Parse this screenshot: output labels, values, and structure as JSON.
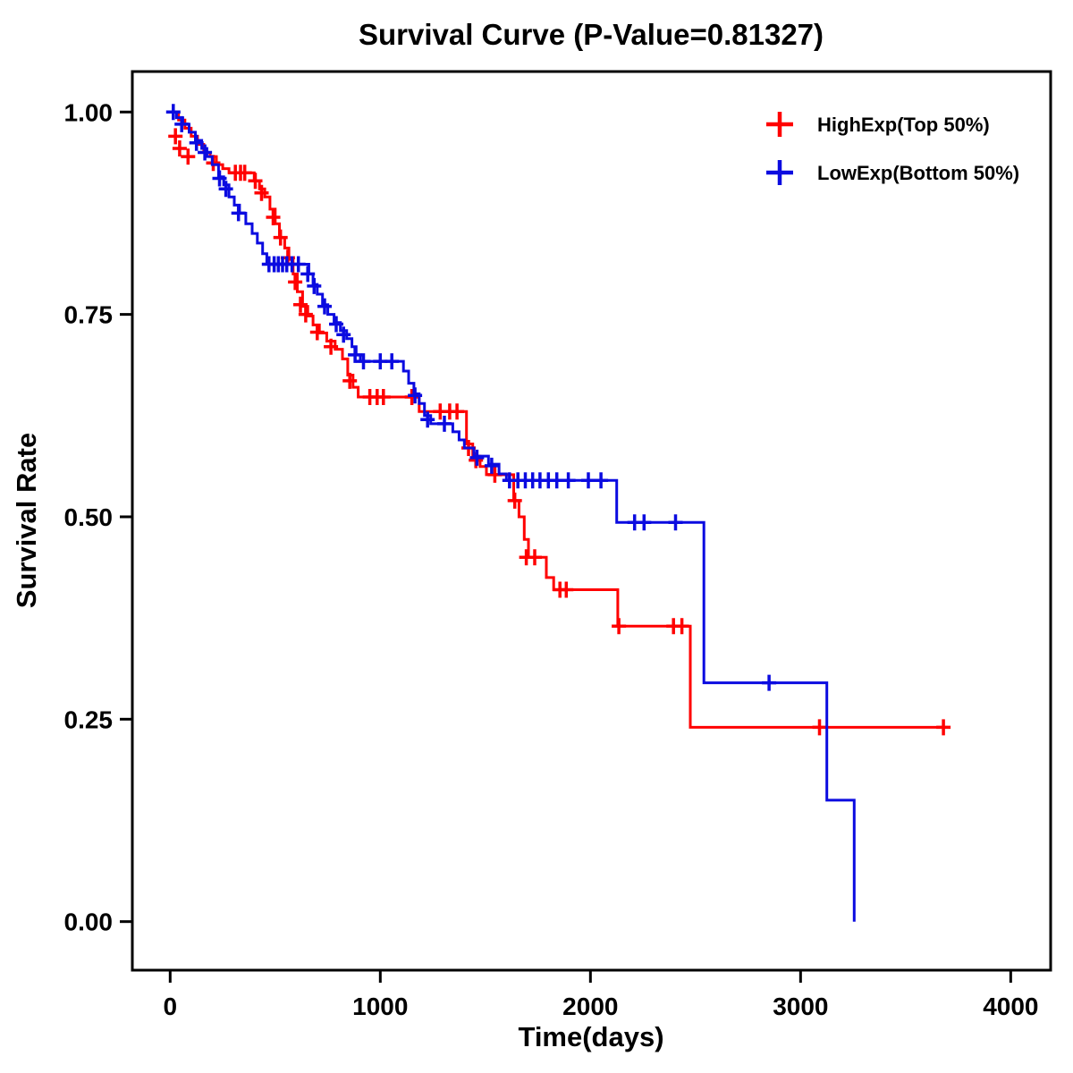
{
  "chart_data": {
    "type": "line",
    "subtype": "kaplan-meier-step",
    "title": "Survival Curve (P-Value=0.81327)",
    "xlabel": "Time(days)",
    "ylabel": "Survival Rate",
    "p_value": 0.81327,
    "xlim": [
      -180,
      4190
    ],
    "ylim": [
      -0.06,
      1.05
    ],
    "xticks": [
      0,
      1000,
      2000,
      3000,
      4000
    ],
    "yticks": [
      0.0,
      0.25,
      0.5,
      0.75,
      1.0
    ],
    "ytick_labels": [
      "0.00",
      "0.25",
      "0.50",
      "0.75",
      "1.00"
    ],
    "grid": false,
    "legend_position": "top-right-inside",
    "series": [
      {
        "name": "HighExp(Top 50%)",
        "color": "#FF0000",
        "steps": [
          [
            0,
            1.0
          ],
          [
            40,
            0.99
          ],
          [
            70,
            0.98
          ],
          [
            100,
            0.97
          ],
          [
            130,
            0.96
          ],
          [
            160,
            0.95
          ],
          [
            190,
            0.945
          ],
          [
            220,
            0.935
          ],
          [
            250,
            0.93
          ],
          [
            280,
            0.925
          ],
          [
            370,
            0.925
          ],
          [
            400,
            0.915
          ],
          [
            425,
            0.905
          ],
          [
            450,
            0.895
          ],
          [
            475,
            0.88
          ],
          [
            500,
            0.862
          ],
          [
            520,
            0.845
          ],
          [
            545,
            0.832
          ],
          [
            565,
            0.818
          ],
          [
            585,
            0.8
          ],
          [
            605,
            0.778
          ],
          [
            630,
            0.76
          ],
          [
            655,
            0.748
          ],
          [
            680,
            0.737
          ],
          [
            710,
            0.727
          ],
          [
            745,
            0.717
          ],
          [
            785,
            0.707
          ],
          [
            820,
            0.695
          ],
          [
            845,
            0.675
          ],
          [
            870,
            0.66
          ],
          [
            895,
            0.648
          ],
          [
            1160,
            0.648
          ],
          [
            1185,
            0.63
          ],
          [
            1395,
            0.63
          ],
          [
            1410,
            0.59
          ],
          [
            1440,
            0.575
          ],
          [
            1475,
            0.562
          ],
          [
            1505,
            0.552
          ],
          [
            1620,
            0.552
          ],
          [
            1635,
            0.52
          ],
          [
            1660,
            0.5
          ],
          [
            1685,
            0.472
          ],
          [
            1705,
            0.45
          ],
          [
            1775,
            0.45
          ],
          [
            1790,
            0.425
          ],
          [
            1825,
            0.41
          ],
          [
            2115,
            0.41
          ],
          [
            2130,
            0.365
          ],
          [
            2460,
            0.365
          ],
          [
            2475,
            0.24
          ],
          [
            3700,
            0.24
          ]
        ],
        "censors": [
          [
            25,
            0.97
          ],
          [
            45,
            0.955
          ],
          [
            85,
            0.945
          ],
          [
            205,
            0.937
          ],
          [
            310,
            0.925
          ],
          [
            335,
            0.925
          ],
          [
            355,
            0.925
          ],
          [
            405,
            0.915
          ],
          [
            435,
            0.9
          ],
          [
            490,
            0.87
          ],
          [
            525,
            0.845
          ],
          [
            560,
            0.82
          ],
          [
            595,
            0.79
          ],
          [
            620,
            0.762
          ],
          [
            645,
            0.75
          ],
          [
            700,
            0.728
          ],
          [
            765,
            0.71
          ],
          [
            855,
            0.668
          ],
          [
            950,
            0.648
          ],
          [
            985,
            0.648
          ],
          [
            1015,
            0.648
          ],
          [
            1150,
            0.648
          ],
          [
            1285,
            0.63
          ],
          [
            1330,
            0.63
          ],
          [
            1365,
            0.63
          ],
          [
            1420,
            0.585
          ],
          [
            1455,
            0.57
          ],
          [
            1545,
            0.552
          ],
          [
            1640,
            0.52
          ],
          [
            1695,
            0.45
          ],
          [
            1735,
            0.45
          ],
          [
            1855,
            0.41
          ],
          [
            1885,
            0.41
          ],
          [
            2135,
            0.365
          ],
          [
            2395,
            0.365
          ],
          [
            2435,
            0.365
          ],
          [
            3090,
            0.24
          ],
          [
            3680,
            0.24
          ]
        ]
      },
      {
        "name": "LowExp(Bottom 50%)",
        "color": "#0B0BE0",
        "steps": [
          [
            0,
            1.0
          ],
          [
            30,
            0.993
          ],
          [
            60,
            0.985
          ],
          [
            90,
            0.975
          ],
          [
            120,
            0.965
          ],
          [
            150,
            0.955
          ],
          [
            175,
            0.945
          ],
          [
            200,
            0.935
          ],
          [
            230,
            0.92
          ],
          [
            255,
            0.91
          ],
          [
            280,
            0.895
          ],
          [
            305,
            0.885
          ],
          [
            330,
            0.875
          ],
          [
            360,
            0.862
          ],
          [
            390,
            0.85
          ],
          [
            415,
            0.838
          ],
          [
            440,
            0.825
          ],
          [
            460,
            0.812
          ],
          [
            640,
            0.812
          ],
          [
            660,
            0.8
          ],
          [
            680,
            0.787
          ],
          [
            700,
            0.775
          ],
          [
            725,
            0.762
          ],
          [
            750,
            0.75
          ],
          [
            780,
            0.74
          ],
          [
            810,
            0.73
          ],
          [
            840,
            0.72
          ],
          [
            865,
            0.71
          ],
          [
            885,
            0.7
          ],
          [
            905,
            0.692
          ],
          [
            1090,
            0.692
          ],
          [
            1110,
            0.68
          ],
          [
            1135,
            0.665
          ],
          [
            1160,
            0.652
          ],
          [
            1185,
            0.64
          ],
          [
            1210,
            0.625
          ],
          [
            1240,
            0.615
          ],
          [
            1330,
            0.615
          ],
          [
            1345,
            0.605
          ],
          [
            1375,
            0.595
          ],
          [
            1400,
            0.585
          ],
          [
            1445,
            0.575
          ],
          [
            1515,
            0.565
          ],
          [
            1565,
            0.553
          ],
          [
            1600,
            0.545
          ],
          [
            2110,
            0.545
          ],
          [
            2125,
            0.493
          ],
          [
            2520,
            0.493
          ],
          [
            2540,
            0.295
          ],
          [
            3105,
            0.295
          ],
          [
            3125,
            0.15
          ],
          [
            3250,
            0.15
          ],
          [
            3255,
            0.0
          ]
        ],
        "censors": [
          [
            15,
            1.0
          ],
          [
            55,
            0.985
          ],
          [
            125,
            0.962
          ],
          [
            165,
            0.95
          ],
          [
            235,
            0.918
          ],
          [
            265,
            0.905
          ],
          [
            325,
            0.875
          ],
          [
            470,
            0.812
          ],
          [
            495,
            0.812
          ],
          [
            515,
            0.812
          ],
          [
            535,
            0.812
          ],
          [
            555,
            0.812
          ],
          [
            580,
            0.812
          ],
          [
            610,
            0.812
          ],
          [
            655,
            0.8
          ],
          [
            685,
            0.785
          ],
          [
            735,
            0.76
          ],
          [
            790,
            0.738
          ],
          [
            825,
            0.725
          ],
          [
            880,
            0.7
          ],
          [
            920,
            0.692
          ],
          [
            1000,
            0.692
          ],
          [
            1055,
            0.692
          ],
          [
            1165,
            0.65
          ],
          [
            1225,
            0.62
          ],
          [
            1305,
            0.615
          ],
          [
            1460,
            0.573
          ],
          [
            1530,
            0.563
          ],
          [
            1615,
            0.545
          ],
          [
            1655,
            0.545
          ],
          [
            1690,
            0.545
          ],
          [
            1725,
            0.545
          ],
          [
            1760,
            0.545
          ],
          [
            1800,
            0.545
          ],
          [
            1840,
            0.545
          ],
          [
            1895,
            0.545
          ],
          [
            1990,
            0.545
          ],
          [
            2050,
            0.545
          ],
          [
            2210,
            0.493
          ],
          [
            2255,
            0.493
          ],
          [
            2405,
            0.493
          ],
          [
            2850,
            0.295
          ]
        ]
      }
    ]
  }
}
